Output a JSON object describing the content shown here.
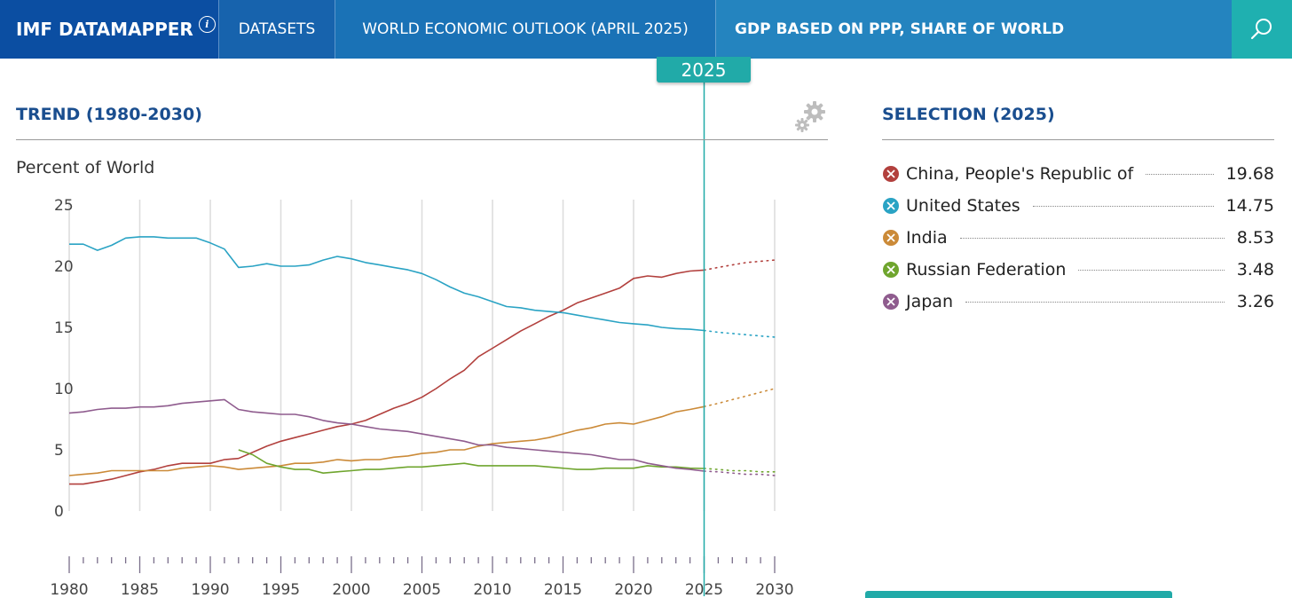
{
  "nav": {
    "brand": "IMF DATAMAPPER",
    "datasets": "DATASETS",
    "dataset_name": "WORLD ECONOMIC OUTLOOK (APRIL 2025)",
    "indicator": "GDP BASED ON PPP, SHARE OF WORLD"
  },
  "selected_year": "2025",
  "trend": {
    "title": "TREND (1980-2030)",
    "unit_label": "Percent of World"
  },
  "selection": {
    "title": "SELECTION (2025)",
    "items": [
      {
        "name": "China, People's Republic of",
        "value": "19.68",
        "color": "#b2403d"
      },
      {
        "name": "United States",
        "value": "14.75",
        "color": "#2aa3c4"
      },
      {
        "name": "India",
        "value": "8.53",
        "color": "#cb8a38"
      },
      {
        "name": "Russian Federation",
        "value": "3.48",
        "color": "#6fa52e"
      },
      {
        "name": "Japan",
        "value": "3.26",
        "color": "#8f5c8e"
      }
    ]
  },
  "chart_data": {
    "type": "line",
    "title": "TREND (1980-2030)",
    "ylabel": "Percent of World",
    "xlabel": "",
    "xlim": [
      1980,
      2030
    ],
    "ylim": [
      0,
      25
    ],
    "yticks": [
      "0",
      "5",
      "10",
      "15",
      "20",
      "25"
    ],
    "xticks": [
      "1980",
      "1985",
      "1990",
      "1995",
      "2000",
      "2005",
      "2010",
      "2015",
      "2020",
      "2025",
      "2030"
    ],
    "grid": true,
    "projection_start": 2025,
    "series": [
      {
        "name": "China, People's Republic of",
        "color": "#b2403d",
        "x": [
          1980,
          1981,
          1982,
          1983,
          1984,
          1985,
          1986,
          1987,
          1988,
          1989,
          1990,
          1991,
          1992,
          1993,
          1994,
          1995,
          1996,
          1997,
          1998,
          1999,
          2000,
          2001,
          2002,
          2003,
          2004,
          2005,
          2006,
          2007,
          2008,
          2009,
          2010,
          2011,
          2012,
          2013,
          2014,
          2015,
          2016,
          2017,
          2018,
          2019,
          2020,
          2021,
          2022,
          2023,
          2024,
          2025,
          2026,
          2027,
          2028,
          2029,
          2030
        ],
        "y": [
          2.2,
          2.2,
          2.4,
          2.6,
          2.9,
          3.2,
          3.4,
          3.7,
          3.9,
          3.9,
          3.9,
          4.2,
          4.3,
          4.8,
          5.3,
          5.7,
          6.0,
          6.3,
          6.6,
          6.9,
          7.1,
          7.4,
          7.9,
          8.4,
          8.8,
          9.3,
          10.0,
          10.8,
          11.5,
          12.6,
          13.3,
          14.0,
          14.7,
          15.3,
          15.9,
          16.4,
          17.0,
          17.4,
          17.8,
          18.2,
          19.0,
          19.2,
          19.1,
          19.4,
          19.6,
          19.68,
          19.9,
          20.1,
          20.3,
          20.4,
          20.5
        ]
      },
      {
        "name": "United States",
        "color": "#2aa3c4",
        "x": [
          1980,
          1981,
          1982,
          1983,
          1984,
          1985,
          1986,
          1987,
          1988,
          1989,
          1990,
          1991,
          1992,
          1993,
          1994,
          1995,
          1996,
          1997,
          1998,
          1999,
          2000,
          2001,
          2002,
          2003,
          2004,
          2005,
          2006,
          2007,
          2008,
          2009,
          2010,
          2011,
          2012,
          2013,
          2014,
          2015,
          2016,
          2017,
          2018,
          2019,
          2020,
          2021,
          2022,
          2023,
          2024,
          2025,
          2026,
          2027,
          2028,
          2029,
          2030
        ],
        "y": [
          21.8,
          21.8,
          21.3,
          21.7,
          22.3,
          22.4,
          22.4,
          22.3,
          22.3,
          22.3,
          21.9,
          21.4,
          19.9,
          20.0,
          20.2,
          20.0,
          20.0,
          20.1,
          20.5,
          20.8,
          20.6,
          20.3,
          20.1,
          19.9,
          19.7,
          19.4,
          18.9,
          18.3,
          17.8,
          17.5,
          17.1,
          16.7,
          16.6,
          16.4,
          16.3,
          16.2,
          16.0,
          15.8,
          15.6,
          15.4,
          15.3,
          15.2,
          15.0,
          14.9,
          14.85,
          14.75,
          14.6,
          14.5,
          14.4,
          14.3,
          14.2
        ]
      },
      {
        "name": "India",
        "color": "#cb8a38",
        "x": [
          1980,
          1981,
          1982,
          1983,
          1984,
          1985,
          1986,
          1987,
          1988,
          1989,
          1990,
          1991,
          1992,
          1993,
          1994,
          1995,
          1996,
          1997,
          1998,
          1999,
          2000,
          2001,
          2002,
          2003,
          2004,
          2005,
          2006,
          2007,
          2008,
          2009,
          2010,
          2011,
          2012,
          2013,
          2014,
          2015,
          2016,
          2017,
          2018,
          2019,
          2020,
          2021,
          2022,
          2023,
          2024,
          2025,
          2026,
          2027,
          2028,
          2029,
          2030
        ],
        "y": [
          2.9,
          3.0,
          3.1,
          3.3,
          3.3,
          3.3,
          3.3,
          3.3,
          3.5,
          3.6,
          3.7,
          3.6,
          3.4,
          3.5,
          3.6,
          3.7,
          3.9,
          3.9,
          4.0,
          4.2,
          4.1,
          4.2,
          4.2,
          4.4,
          4.5,
          4.7,
          4.8,
          5.0,
          5.0,
          5.3,
          5.5,
          5.6,
          5.7,
          5.8,
          6.0,
          6.3,
          6.6,
          6.8,
          7.1,
          7.2,
          7.1,
          7.4,
          7.7,
          8.1,
          8.3,
          8.53,
          8.8,
          9.1,
          9.4,
          9.7,
          10.0
        ]
      },
      {
        "name": "Russian Federation",
        "color": "#6fa52e",
        "x": [
          1992,
          1993,
          1994,
          1995,
          1996,
          1997,
          1998,
          1999,
          2000,
          2001,
          2002,
          2003,
          2004,
          2005,
          2006,
          2007,
          2008,
          2009,
          2010,
          2011,
          2012,
          2013,
          2014,
          2015,
          2016,
          2017,
          2018,
          2019,
          2020,
          2021,
          2022,
          2023,
          2024,
          2025,
          2026,
          2027,
          2028,
          2029,
          2030
        ],
        "y": [
          5.0,
          4.6,
          3.9,
          3.6,
          3.4,
          3.4,
          3.1,
          3.2,
          3.3,
          3.4,
          3.4,
          3.5,
          3.6,
          3.6,
          3.7,
          3.8,
          3.9,
          3.7,
          3.7,
          3.7,
          3.7,
          3.7,
          3.6,
          3.5,
          3.4,
          3.4,
          3.5,
          3.5,
          3.5,
          3.7,
          3.6,
          3.6,
          3.5,
          3.48,
          3.4,
          3.3,
          3.3,
          3.2,
          3.2
        ]
      },
      {
        "name": "Japan",
        "color": "#8f5c8e",
        "x": [
          1980,
          1981,
          1982,
          1983,
          1984,
          1985,
          1986,
          1987,
          1988,
          1989,
          1990,
          1991,
          1992,
          1993,
          1994,
          1995,
          1996,
          1997,
          1998,
          1999,
          2000,
          2001,
          2002,
          2003,
          2004,
          2005,
          2006,
          2007,
          2008,
          2009,
          2010,
          2011,
          2012,
          2013,
          2014,
          2015,
          2016,
          2017,
          2018,
          2019,
          2020,
          2021,
          2022,
          2023,
          2024,
          2025,
          2026,
          2027,
          2028,
          2029,
          2030
        ],
        "y": [
          8.0,
          8.1,
          8.3,
          8.4,
          8.4,
          8.5,
          8.5,
          8.6,
          8.8,
          8.9,
          9.0,
          9.1,
          8.3,
          8.1,
          8.0,
          7.9,
          7.9,
          7.7,
          7.4,
          7.2,
          7.1,
          6.9,
          6.7,
          6.6,
          6.5,
          6.3,
          6.1,
          5.9,
          5.7,
          5.4,
          5.4,
          5.2,
          5.1,
          5.0,
          4.9,
          4.8,
          4.7,
          4.6,
          4.4,
          4.2,
          4.2,
          3.9,
          3.7,
          3.5,
          3.4,
          3.26,
          3.2,
          3.1,
          3.0,
          3.0,
          2.9
        ]
      }
    ]
  }
}
